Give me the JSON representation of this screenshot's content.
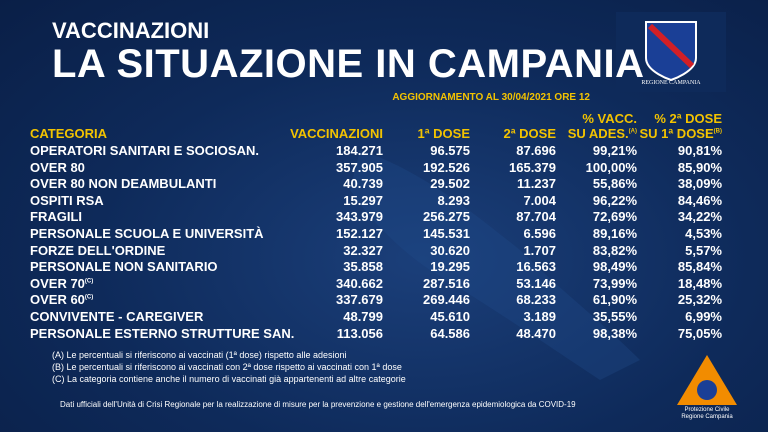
{
  "header": {
    "kicker": "VACCINAZIONI",
    "title": "LA SITUAZIONE IN CAMPANIA",
    "update": "AGGIORNAMENTO AL 30/04/2021 ORE 12"
  },
  "logo": {
    "label": "REGIONE CAMPANIA"
  },
  "table": {
    "columns": [
      {
        "lines": [
          "CATEGORIA"
        ]
      },
      {
        "lines": [
          "VACCINAZIONI"
        ]
      },
      {
        "lines": [
          "1ª DOSE"
        ]
      },
      {
        "lines": [
          "2ª DOSE"
        ]
      },
      {
        "lines": [
          "% VACC.",
          "SU ADES."
        ],
        "note": "(A)"
      },
      {
        "lines": [
          "% 2ª DOSE",
          "SU 1ª DOSE"
        ],
        "note": "(B)"
      }
    ],
    "rows": [
      {
        "category": "OPERATORI SANITARI E SOCIOSAN.",
        "values": [
          "184.271",
          "96.575",
          "87.696",
          "99,21%",
          "90,81%"
        ]
      },
      {
        "category": "OVER 80",
        "values": [
          "357.905",
          "192.526",
          "165.379",
          "100,00%",
          "85,90%"
        ]
      },
      {
        "category": "OVER 80 NON DEAMBULANTI",
        "values": [
          "40.739",
          "29.502",
          "11.237",
          "55,86%",
          "38,09%"
        ]
      },
      {
        "category": "OSPITI RSA",
        "values": [
          "15.297",
          "8.293",
          "7.004",
          "96,22%",
          "84,46%"
        ]
      },
      {
        "category": "FRAGILI",
        "values": [
          "343.979",
          "256.275",
          "87.704",
          "72,69%",
          "34,22%"
        ]
      },
      {
        "category": "PERSONALE SCUOLA E UNIVERSITÀ",
        "values": [
          "152.127",
          "145.531",
          "6.596",
          "89,16%",
          "4,53%"
        ]
      },
      {
        "category": "FORZE DELL'ORDINE",
        "values": [
          "32.327",
          "30.620",
          "1.707",
          "83,82%",
          "5,57%"
        ]
      },
      {
        "category": "PERSONALE NON SANITARIO",
        "values": [
          "35.858",
          "19.295",
          "16.563",
          "98,49%",
          "85,84%"
        ]
      },
      {
        "category": "OVER 70",
        "note": "(C)",
        "values": [
          "340.662",
          "287.516",
          "53.146",
          "73,99%",
          "18,48%"
        ]
      },
      {
        "category": "OVER 60",
        "note": "(C)",
        "values": [
          "337.679",
          "269.446",
          "68.233",
          "61,90%",
          "25,32%"
        ]
      },
      {
        "category": "CONVIVENTE - CAREGIVER",
        "values": [
          "48.799",
          "45.610",
          "3.189",
          "35,55%",
          "6,99%"
        ]
      },
      {
        "category": "PERSONALE ESTERNO STRUTTURE SAN.",
        "values": [
          "113.056",
          "64.586",
          "48.470",
          "98,38%",
          "75,05%"
        ]
      }
    ]
  },
  "notes": [
    "(A) Le percentuali si riferiscono ai vaccinati (1ª dose) rispetto alle adesioni",
    "(B) Le percentuali si riferiscono ai vaccinati con 2ª dose rispetto ai vaccinati con 1ª dose",
    "(C) La categoria contiene anche il numero di vaccinati già appartenenti ad altre categorie"
  ],
  "footer": "Dati ufficiali dell'Unità di Crisi Regionale per la realizzazione di misure per la prevenzione e gestione dell'emergenza epidemiologica da COVID-19",
  "civil_protection": [
    "Protezione Civile",
    "Regione Campania"
  ]
}
